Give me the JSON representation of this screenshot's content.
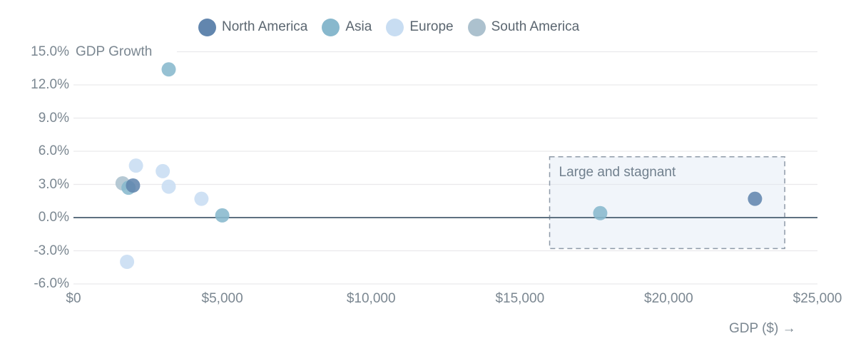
{
  "legend": {
    "items": [
      {
        "label": "North America",
        "color": "#6286ae"
      },
      {
        "label": "Asia",
        "color": "#88b8cd"
      },
      {
        "label": "Europe",
        "color": "#c8ddf2"
      },
      {
        "label": "South America",
        "color": "#acc1ce"
      }
    ]
  },
  "colors": {
    "background": "#ffffff",
    "grid": "#eae9ec",
    "zero_line": "#5e7181",
    "axis_text": "#7b8791",
    "legend_text": "#5b6670",
    "annotation_border": "#8e9aa8",
    "annotation_fill": "#dde7f3",
    "annotation_text": "#71808e"
  },
  "chart_data": {
    "type": "scatter",
    "title": "",
    "xlabel": "GDP ($) →",
    "ylabel": "GDP Growth",
    "xlim": [
      0,
      25000
    ],
    "ylim": [
      -6,
      15
    ],
    "grid": "horizontal",
    "legend_position": "top",
    "x_ticks": [
      {
        "value": 0,
        "label": "$0"
      },
      {
        "value": 5000,
        "label": "$5,000"
      },
      {
        "value": 10000,
        "label": "$10,000"
      },
      {
        "value": 15000,
        "label": "$15,000"
      },
      {
        "value": 20000,
        "label": "$20,000"
      },
      {
        "value": 25000,
        "label": "$25,000"
      }
    ],
    "y_ticks": [
      {
        "value": 15,
        "label": "15.0%"
      },
      {
        "value": 12,
        "label": "12.0%"
      },
      {
        "value": 9,
        "label": "9.0%"
      },
      {
        "value": 6,
        "label": "6.0%"
      },
      {
        "value": 3,
        "label": "3.0%"
      },
      {
        "value": 0,
        "label": "0.0%"
      },
      {
        "value": -3,
        "label": "-3.0%"
      },
      {
        "value": -6,
        "label": "-6.0%"
      }
    ],
    "zero_line": true,
    "series": [
      {
        "name": "North America",
        "color": "#6286ae",
        "points": [
          {
            "x": 2000,
            "y": 2.9
          },
          {
            "x": 22900,
            "y": 1.7
          }
        ]
      },
      {
        "name": "Asia",
        "color": "#88b8cd",
        "points": [
          {
            "x": 3200,
            "y": 13.4
          },
          {
            "x": 1850,
            "y": 2.7
          },
          {
            "x": 5000,
            "y": 0.2
          },
          {
            "x": 17700,
            "y": 0.4
          }
        ]
      },
      {
        "name": "Europe",
        "color": "#c8ddf2",
        "points": [
          {
            "x": 2100,
            "y": 4.7
          },
          {
            "x": 3000,
            "y": 4.2
          },
          {
            "x": 3200,
            "y": 2.8
          },
          {
            "x": 4300,
            "y": 1.7
          },
          {
            "x": 1800,
            "y": -4.0
          }
        ]
      },
      {
        "name": "South America",
        "color": "#acc1ce",
        "points": [
          {
            "x": 1650,
            "y": 3.1
          }
        ]
      }
    ],
    "annotation": {
      "label": "Large and stagnant",
      "x_range": [
        16000,
        23900
      ],
      "y_range": [
        -2.8,
        5.5
      ]
    }
  }
}
